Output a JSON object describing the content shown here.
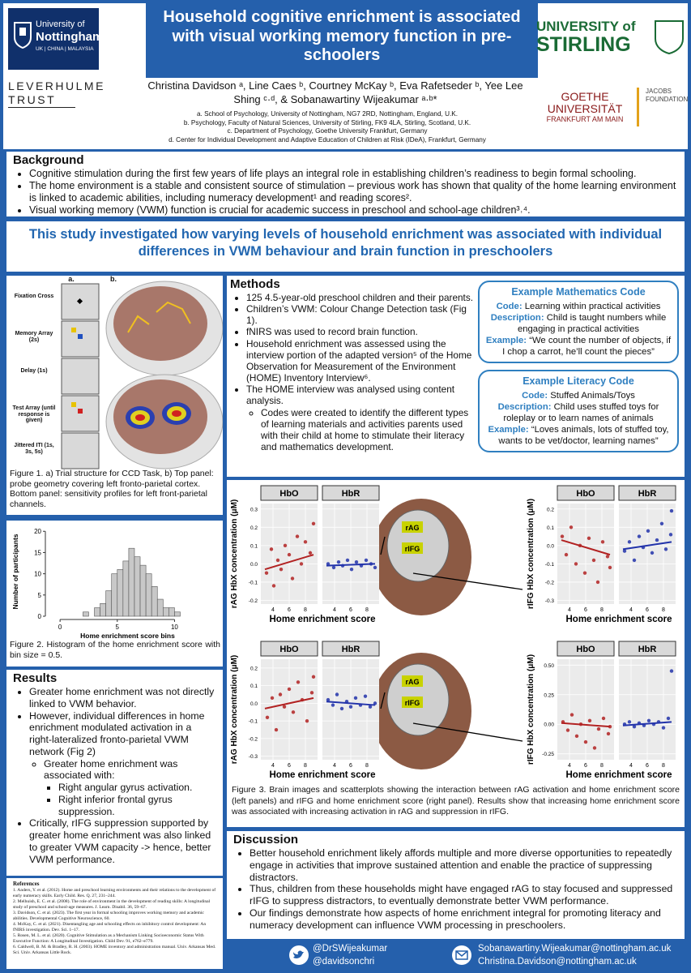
{
  "header": {
    "title": "Household cognitive enrichment is associated with visual working memory function in pre-schoolers",
    "authors": "Christina Davidson ᵃ, Line Caes ᵇ, Courtney McKay ᵇ, Eva Rafetseder ᵇ, Yee Lee Shing ᶜ·ᵈ, & Sobanawartiny Wijeakumar ᵃ·ᵇ*",
    "affiliations": [
      "a. School of Psychology, University of Nottingham, NG7 2RD, Nottingham, England, U.K.",
      "b. Psychology, Faculty of Natural Sciences, University of Stirling, FK9 4LA, Stirling, Scotland, U.K.",
      "c. Department of Psychology, Goethe University Frankfurt, Germany",
      "d. Center for Individual Development and Adaptive Education of Children at Risk (IDeA), Frankfurt, Germany"
    ],
    "logos": {
      "nottingham": [
        "University of",
        "Nottingham",
        "UK | CHINA | MALAYSIA"
      ],
      "leverhulme": [
        "LEVERHULME",
        "TRUST"
      ],
      "stirling": [
        "UNIVERSITY of",
        "STIRLING"
      ],
      "goethe": [
        "GOETHE",
        "UNIVERSITÄT",
        "FRANKFURT AM MAIN"
      ],
      "jacobs": [
        "JACOBS",
        "FOUNDATION"
      ]
    }
  },
  "background": {
    "heading": "Background",
    "bullets": [
      "Cognitive stimulation during the first few years of life plays an integral role in establishing children’s readiness to begin formal schooling.",
      "The home environment is a stable and consistent source of stimulation – previous work has shown that quality of the home learning environment is linked to academic abilities, including numeracy development¹ and reading scores².",
      "Visual working memory (VWM) function is crucial for academic success in preschool and school-age children³˒⁴."
    ]
  },
  "aim": "This study investigated how varying levels of household enrichment was associated with individual differences in VWM behaviour and brain function in preschoolers",
  "figure1": {
    "panel_labels": [
      "a.",
      "b."
    ],
    "trial_steps": [
      "Fixation Cross",
      "Memory Array (2s)",
      "Delay (1s)",
      "Test Array (until response is given)",
      "Jittered ITI (1s, 3s, 5s)"
    ],
    "caption": "Figure 1. a) Trial structure for CCD Task, b) Top panel: probe geometry covering left fronto-parietal cortex. Bottom panel: sensitivity profiles for left front-parietal channels."
  },
  "methods": {
    "heading": "Methods",
    "bullets": [
      "125 4.5-year-old preschool children and their parents.",
      "Children’s VWM: Colour Change Detection task (Fig 1).",
      "fNIRS was used to record brain function.",
      "Household enrichment was assessed using the interview portion of the adapted version⁵ of the Home Observation for Measurement of the Environment (HOME) Inventory Interview⁶.",
      {
        "text": "The HOME interview was analysed using content analysis.",
        "sub": [
          "Codes were created to identify the different types of learning materials and activities parents used with their child at home to stimulate their literacy and mathematics development."
        ]
      }
    ],
    "code_examples": [
      {
        "title": "Example Mathematics Code",
        "items": [
          {
            "label": "Code:",
            "text": "Learning within practical activities"
          },
          {
            "label": "Description:",
            "text": "Child is taught numbers while engaging in practical activities"
          },
          {
            "label": "Example:",
            "text": "“We count the number of objects, if I chop a carrot, he’ll count the pieces”"
          }
        ]
      },
      {
        "title": "Example Literacy Code",
        "items": [
          {
            "label": "Code:",
            "text": "Stuffed Animals/Toys"
          },
          {
            "label": "Description:",
            "text": "Child uses stuffed toys for roleplay or to learn names of animals"
          },
          {
            "label": "Example:",
            "text": "“Loves animals, lots of stuffed toy, wants to be vet/doctor, learning names”"
          }
        ]
      }
    ]
  },
  "figure2": {
    "type": "histogram",
    "xlabel": "Home enrichment score bins",
    "ylabel": "Number of participants",
    "color": "#c8c8c8",
    "bins": [
      2,
      2.5,
      3,
      3.5,
      4,
      4.5,
      5,
      5.5,
      6,
      6.5,
      7,
      7.5,
      8,
      8.5,
      9,
      9.5,
      10,
      10.5
    ],
    "counts": [
      1,
      0,
      2,
      3,
      6,
      10,
      11,
      13,
      16,
      14,
      12,
      10,
      7,
      4,
      2,
      2,
      1
    ],
    "xlim": [
      -1,
      12.8
    ],
    "xticks": [
      0,
      5,
      10
    ],
    "ylim": [
      0,
      21
    ],
    "yticks": [
      0,
      5,
      10,
      15,
      20
    ],
    "caption": "Figure 2. Histogram of the home enrichment score with bin size = 0.5."
  },
  "figure3": {
    "type": "scatter",
    "brain_labels": [
      "rAG",
      "rIFG"
    ],
    "caption": "Figure 3. Brain images and scatterplots showing the interaction between rAG activation and home enrichment score (left panels) and rIFG and home enrichment score (right panel). Results show that increasing home enrichment score was associated with increasing activation in rAG and suppression in rIFG.",
    "panels": [
      {
        "ylabel": "rAG HbX concentration (μM)",
        "xlabel": "Home enrichment score",
        "xlim": [
          2.5,
          9.5
        ],
        "xticks": [
          4,
          6,
          8
        ],
        "ylim": [
          -0.22,
          0.33
        ],
        "yticks": [
          0.3,
          0.2,
          0.1,
          {
            "value": 0,
            "label": "0.0"
          },
          -0.1,
          -0.2
        ],
        "series": [
          {
            "name": "HbO",
            "color": "#b22222",
            "points": [
              [
                3.2,
                -0.05
              ],
              [
                3.8,
                0.08
              ],
              [
                4.1,
                -0.12
              ],
              [
                4.6,
                0.02
              ],
              [
                5,
                -0.03
              ],
              [
                5.5,
                0.1
              ],
              [
                6,
                0.05
              ],
              [
                6.4,
                -0.08
              ],
              [
                7,
                0.15
              ],
              [
                7.5,
                0
              ],
              [
                8,
                0.12
              ],
              [
                8.6,
                0.06
              ],
              [
                9,
                0.22
              ]
            ],
            "fit": [
              [
                3,
                -0.03
              ],
              [
                9,
                0.05
              ]
            ]
          },
          {
            "name": "HbR",
            "color": "#2233aa",
            "points": [
              [
                3.2,
                0
              ],
              [
                3.9,
                -0.02
              ],
              [
                4.5,
                0.01
              ],
              [
                5,
                -0.01
              ],
              [
                5.6,
                0.02
              ],
              [
                6.1,
                -0.03
              ],
              [
                6.7,
                0.01
              ],
              [
                7.3,
                -0.01
              ],
              [
                7.9,
                0.02
              ],
              [
                8.5,
                0
              ],
              [
                9,
                -0.02
              ]
            ],
            "fit": [
              [
                3,
                -0.01
              ],
              [
                9,
                0
              ]
            ]
          }
        ]
      },
      {
        "ylabel": "rIFG HbX concentration (μM)",
        "xlabel": "Home enrichment score",
        "xlim": [
          2.5,
          9.5
        ],
        "xticks": [
          4,
          6,
          8
        ],
        "ylim": [
          -0.32,
          0.23
        ],
        "yticks": [
          0.2,
          0.1,
          {
            "value": 0,
            "label": "0.0"
          },
          -0.1,
          -0.2,
          -0.3
        ],
        "series": [
          {
            "name": "HbO",
            "color": "#b22222",
            "points": [
              [
                3.1,
                0.05
              ],
              [
                3.6,
                -0.05
              ],
              [
                4.2,
                0.1
              ],
              [
                4.8,
                -0.1
              ],
              [
                5.3,
                0
              ],
              [
                5.9,
                -0.15
              ],
              [
                6.4,
                0.04
              ],
              [
                7,
                -0.08
              ],
              [
                7.5,
                -0.2
              ],
              [
                8.1,
                0.02
              ],
              [
                8.7,
                -0.06
              ],
              [
                9,
                -0.12
              ]
            ],
            "fit": [
              [
                3,
                0.03
              ],
              [
                9,
                -0.05
              ]
            ]
          },
          {
            "name": "HbR",
            "color": "#2233aa",
            "points": [
              [
                3.2,
                -0.03
              ],
              [
                3.8,
                0.02
              ],
              [
                4.4,
                -0.08
              ],
              [
                5,
                0.05
              ],
              [
                5.5,
                -0.01
              ],
              [
                6.1,
                0.08
              ],
              [
                6.6,
                -0.04
              ],
              [
                7.2,
                0.03
              ],
              [
                7.8,
                0.12
              ],
              [
                8.3,
                -0.02
              ],
              [
                8.9,
                0.06
              ],
              [
                9,
                0.19
              ]
            ],
            "fit": [
              [
                3,
                -0.02
              ],
              [
                9,
                0.02
              ]
            ]
          }
        ]
      },
      {
        "ylabel": "rAG HbX concentration (μM)",
        "xlabel": "Home enrichment score",
        "xlim": [
          2.5,
          9.5
        ],
        "xticks": [
          4,
          6,
          8
        ],
        "ylim": [
          -0.32,
          0.25
        ],
        "yticks": [
          0.2,
          0.1,
          {
            "value": 0,
            "label": "0.0"
          },
          -0.1,
          -0.2,
          -0.3
        ],
        "series": [
          {
            "name": "HbO",
            "color": "#b22222",
            "points": [
              [
                3.3,
                -0.08
              ],
              [
                3.9,
                0.03
              ],
              [
                4.4,
                -0.15
              ],
              [
                4.9,
                0.05
              ],
              [
                5.4,
                -0.02
              ],
              [
                6,
                0.08
              ],
              [
                6.5,
                -0.05
              ],
              [
                7.1,
                0.12
              ],
              [
                7.6,
                0.02
              ],
              [
                8.2,
                -0.1
              ],
              [
                8.8,
                0.06
              ],
              [
                9,
                0.15
              ]
            ],
            "fit": [
              [
                3,
                -0.03
              ],
              [
                9,
                0.03
              ]
            ]
          },
          {
            "name": "HbR",
            "color": "#2233aa",
            "points": [
              [
                3.2,
                0.02
              ],
              [
                3.8,
                -0.01
              ],
              [
                4.3,
                0.05
              ],
              [
                4.9,
                -0.03
              ],
              [
                5.5,
                0.01
              ],
              [
                6,
                -0.02
              ],
              [
                6.6,
                0.03
              ],
              [
                7.2,
                -0.01
              ],
              [
                7.8,
                0.04
              ],
              [
                8.4,
                -0.02
              ],
              [
                9,
                0
              ]
            ],
            "fit": [
              [
                3,
                0.01
              ],
              [
                9,
                -0.01
              ]
            ]
          }
        ]
      },
      {
        "ylabel": "rIFG HbX concentration (μM)",
        "xlabel": "Home enrichment score",
        "xlim": [
          2.5,
          9.5
        ],
        "xticks": [
          4,
          6,
          8
        ],
        "ylim": [
          -0.3,
          0.55
        ],
        "yticks": [
          {
            "value": 0.5,
            "label": "0.50"
          },
          {
            "value": 0.25,
            "label": "0.25"
          },
          {
            "value": 0,
            "label": "0.00"
          },
          -0.25
        ],
        "series": [
          {
            "name": "HbO",
            "color": "#b22222",
            "points": [
              [
                3.2,
                0.02
              ],
              [
                3.8,
                -0.05
              ],
              [
                4.3,
                0.08
              ],
              [
                4.9,
                -0.1
              ],
              [
                5.4,
                0
              ],
              [
                6,
                -0.15
              ],
              [
                6.5,
                0.03
              ],
              [
                7.1,
                -0.2
              ],
              [
                7.6,
                -0.04
              ],
              [
                8.2,
                0.05
              ],
              [
                8.8,
                -0.08
              ],
              [
                9,
                -0.02
              ]
            ],
            "fit": [
              [
                3,
                0.01
              ],
              [
                9,
                -0.02
              ]
            ]
          },
          {
            "name": "HbR",
            "color": "#2233aa",
            "points": [
              [
                3.2,
                0
              ],
              [
                3.8,
                0.02
              ],
              [
                4.4,
                -0.02
              ],
              [
                5,
                0.01
              ],
              [
                5.6,
                -0.01
              ],
              [
                6.2,
                0.03
              ],
              [
                6.8,
                0
              ],
              [
                7.4,
                0.02
              ],
              [
                8,
                -0.03
              ],
              [
                8.6,
                0.05
              ],
              [
                9,
                0.45
              ]
            ],
            "fit": [
              [
                3,
                -0.01
              ],
              [
                9,
                0.02
              ]
            ]
          }
        ]
      }
    ]
  },
  "results": {
    "heading": "Results",
    "bullets": [
      "Greater home enrichment was not directly linked to VWM behavior.",
      {
        "text": "However, individual differences in home enrichment modulated activation in a right-lateralized fronto-parietal VWM network (Fig 2)",
        "sub": [
          {
            "text": "Greater home enrichment was associated with:",
            "sub": [
              "Right angular gyrus activation.",
              "Right inferior frontal gyrus suppression."
            ]
          }
        ]
      },
      "Critically, rIFG suppression supported by greater home enrichment was also linked to greater VWM capacity -> hence, better VWM performance."
    ]
  },
  "references": {
    "heading": "References",
    "items": [
      "1. Anders, Y. et al. (2012). Home and preschool learning environments and their relations to the development of early numeracy skills. Early Child. Res. Q. 27, 231–244.",
      "2. Melhuish, E. C. et al. (2008). The role of environment in the development of reading skills: A longitudinal study of preschool and school-age measures. J. Learn. Disabil. 36, 59–67.",
      "3. Davidson, C. et al. (2023). The first year in formal schooling improves working memory and academic abilities. Developmental Cognitive Neuroscience, 60.",
      "4. McKay, C. et al. (2021). Disentangling age and schooling effects on inhibitory control development: An fNIRS investigation. Dev. Sci. 1–17.",
      "5. Rosen, M. L. et al. (2020). Cognitive Stimulation as a Mechanism Linking Socioeconomic Status With Executive Function: A Longitudinal Investigation. Child Dev. 91, e762–e779.",
      "6. Caldwell, B. M. & Bradley, R. H. (2003). HOME inventory and administration manual. Univ. Arkansas Med. Sci. Univ. Arkansas Little Rock."
    ]
  },
  "discussion": {
    "heading": "Discussion",
    "bullets": [
      "Better household enrichment likely affords multiple and more diverse opportunities to repeatedly engage in activities that improve sustained attention and enable the practice of suppressing distractors.",
      "Thus, children from these households might have engaged rAG to stay focused and suppressed rIFG to suppress distractors, to eventually demonstrate better VWM performance.",
      "Our findings demonstrate how aspects of home enrichment integral for promoting literacy and numeracy development can influence VWM processing in preschoolers."
    ]
  },
  "contacts": {
    "twitter": [
      "@DrSWijeakumar",
      "@davidsonchri"
    ],
    "emails": [
      "Sobanawartiny.Wijeakumar@nottingham.ac.uk",
      "Christina.Davidson@nottingham.ac.uk"
    ]
  }
}
